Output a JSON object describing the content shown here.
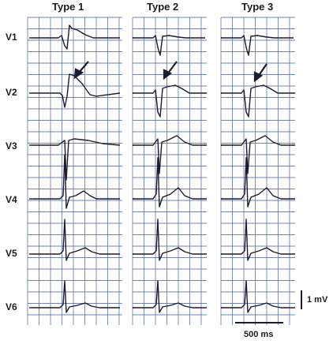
{
  "columns": [
    {
      "title": "Type 1"
    },
    {
      "title": "Type 2"
    },
    {
      "title": "Type 3"
    }
  ],
  "leads": [
    "V1",
    "V2",
    "V3",
    "V4",
    "V5",
    "V6"
  ],
  "scale": {
    "voltage_label": "1 mV",
    "time_label": "500 ms"
  },
  "colors": {
    "grid": "#5a6ea8",
    "trace": "#1c1c2e",
    "text": "#1b1b1b"
  }
}
